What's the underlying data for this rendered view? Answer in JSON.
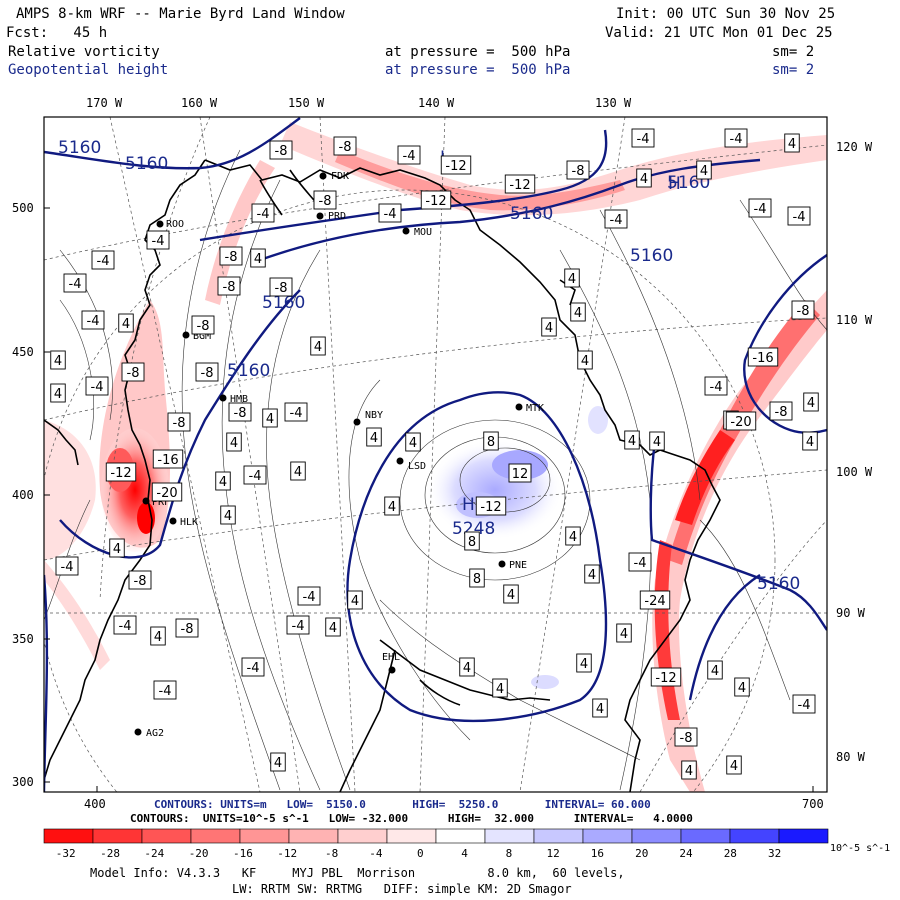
{
  "header": {
    "title": "AMPS 8-km WRF -- Marie Byrd Land Window",
    "init": "Init: 00 UTC Sun 30 Nov 25",
    "fcst": "Fcst:   45 h",
    "valid": "Valid: 21 UTC Mon 01 Dec 25",
    "field1": "Relative vorticity",
    "field1_level": "at pressure =  500 hPa",
    "field1_sm": "sm= 2",
    "field2": "Geopotential height",
    "field2_level": "at pressure =  500 hPa",
    "field2_sm": "sm= 2"
  },
  "axes": {
    "top_lon": [
      "170 W",
      "160 W",
      "150 W",
      "140 W",
      "130 W"
    ],
    "right_lon": [
      "120 W",
      "110 W",
      "100 W",
      "90 W",
      "80 W"
    ],
    "left_y": [
      "500",
      "450",
      "400",
      "350",
      "300"
    ],
    "bottom_x": [
      "400",
      "700"
    ]
  },
  "stations": [
    "ROO",
    "FDK",
    "PRD",
    "MOU",
    "BGM",
    "NBY",
    "HMB",
    "MTK",
    "LSD",
    "PRF",
    "HLK",
    "PNE",
    "EHL",
    "AG2"
  ],
  "height_labels": [
    "5160",
    "5160",
    "5160",
    "5160",
    "5160",
    "5160",
    "5160",
    "5160",
    "5248"
  ],
  "pressure_labels": [
    "L",
    "H",
    "H",
    "L"
  ],
  "contour_text": {
    "height_line": "CONTOURS: UNITS=m   LOW=  5150.0       HIGH=  5250.0       INTERVAL= 60.000",
    "vort_line": "CONTOURS:  UNITS=10^-5 s^-1   LOW= -32.000      HIGH=  32.000      INTERVAL=   4.0000"
  },
  "colorbar": {
    "ticks": [
      "-32",
      "-28",
      "-24",
      "-20",
      "-16",
      "-12",
      "-8",
      "-4",
      "0",
      "4",
      "8",
      "12",
      "16",
      "20",
      "24",
      "28",
      "32"
    ],
    "unit": "10^-5 s^-1",
    "colors": [
      "#ff1010",
      "#ff3535",
      "#ff5555",
      "#ff7575",
      "#ff9595",
      "#ffb3b3",
      "#ffcfcf",
      "#ffe8e8",
      "#ffffff",
      "#ffffff",
      "#e4e4ff",
      "#c8c8ff",
      "#aaaaff",
      "#8c8cff",
      "#6a6aff",
      "#4444ff",
      "#1a1aff"
    ]
  },
  "footer": {
    "line1": "Model Info: V4.3.3   KF     MYJ PBL  Morrison          8.0 km,  60 levels,",
    "line2": "LW: RRTM SW: RRTMG   DIFF: simple KM: 2D Smagor"
  }
}
